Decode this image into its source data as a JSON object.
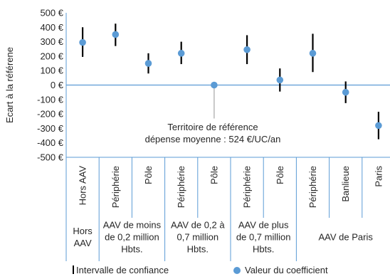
{
  "chart_data": {
    "type": "scatter",
    "ylabel": "Ecart à la référene",
    "ylim": [
      -500,
      500
    ],
    "yticks": [
      500,
      400,
      300,
      200,
      100,
      0,
      -100,
      -200,
      -300,
      -400,
      -500
    ],
    "ytick_labels": [
      "500 €",
      "400 €",
      "300 €",
      "200 €",
      "100 €",
      "0 €",
      "-100 €",
      "-200 €",
      "-300 €",
      "-400 €",
      "-500 €"
    ],
    "categories": [
      {
        "label": "Hors AAV",
        "value": 295,
        "ci_low": 195,
        "ci_high": 400
      },
      {
        "label": "Périphérie",
        "value": 350,
        "ci_low": 270,
        "ci_high": 425
      },
      {
        "label": "Pôle",
        "value": 150,
        "ci_low": 80,
        "ci_high": 220
      },
      {
        "label": "Périphérie",
        "value": 220,
        "ci_low": 145,
        "ci_high": 300
      },
      {
        "label": "Pôle",
        "value": 0,
        "ci_low": null,
        "ci_high": null
      },
      {
        "label": "Périphérie",
        "value": 245,
        "ci_low": 145,
        "ci_high": 345
      },
      {
        "label": "Pôle",
        "value": 35,
        "ci_low": -45,
        "ci_high": 115
      },
      {
        "label": "Périphérie",
        "value": 220,
        "ci_low": 90,
        "ci_high": 355
      },
      {
        "label": "Banlieue",
        "value": -50,
        "ci_low": -125,
        "ci_high": 25
      },
      {
        "label": "Paris",
        "value": -280,
        "ci_low": -375,
        "ci_high": -185
      }
    ],
    "groups": [
      {
        "lines": [
          "Hors",
          "AAV"
        ],
        "span": 1
      },
      {
        "lines": [
          "AAV de moins",
          "de 0,2 million",
          "Hbts."
        ],
        "span": 2
      },
      {
        "lines": [
          "AAV de 0,2 à",
          "0,7 million",
          "Hbts."
        ],
        "span": 2
      },
      {
        "lines": [
          "AAV de plus",
          "de 0,7 million",
          "Hbts."
        ],
        "span": 2
      },
      {
        "lines": [
          "AAV de Paris"
        ],
        "span": 3
      }
    ],
    "annotation": {
      "lines": [
        "Territoire de référence",
        "dépense moyenne : 524 €/UC/an"
      ],
      "points_to_index": 4
    },
    "legend": [
      {
        "label": "Intervalle de confiance",
        "marker": "bar"
      },
      {
        "label": "Valeur du coefficient",
        "marker": "dot"
      }
    ],
    "colors": {
      "point": "#5B9BD5",
      "errorbar": "#000000",
      "axis": "#5B9BD5",
      "connector": "#A6A6A6",
      "text": "#262626"
    }
  }
}
